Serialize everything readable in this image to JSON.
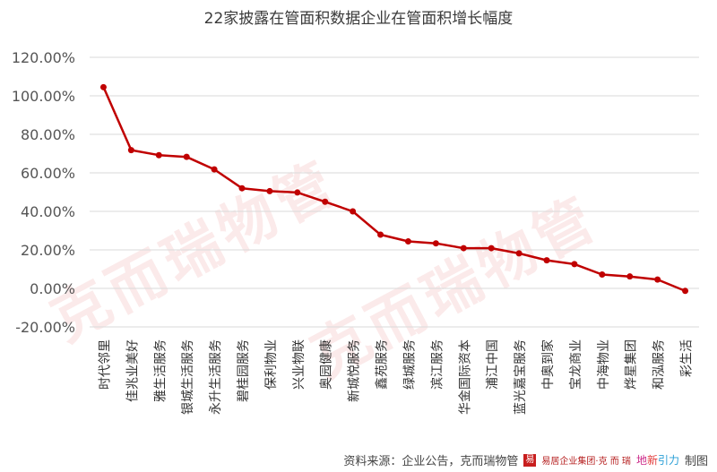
{
  "chart_data": {
    "type": "line",
    "title": "22家披露在管面积数据企业在管面积增长幅度",
    "categories": [
      "时代邻里",
      "佳兆业美好",
      "雅生活服务",
      "银城生活服务",
      "永升生活服务",
      "碧桂园服务",
      "保利物业",
      "兴业物联",
      "奥园健康",
      "新城悦服务",
      "鑫苑服务",
      "绿城服务",
      "滨江服务",
      "华金国际资本",
      "浦江中国",
      "蓝光嘉宝服务",
      "中奥到家",
      "宝龙商业",
      "中海物业",
      "烨星集团",
      "和泓服务",
      "彩生活"
    ],
    "series": [
      {
        "values": [
          104.5,
          71.8,
          69.2,
          68.3,
          61.8,
          52.0,
          50.5,
          49.8,
          45.0,
          40.0,
          27.9,
          24.4,
          23.4,
          20.9,
          20.9,
          18.2,
          14.6,
          12.6,
          7.2,
          6.2,
          4.6,
          -1.3
        ]
      }
    ],
    "ylim": [
      -20,
      120
    ],
    "yticks": [
      "120.00%",
      "100.00%",
      "80.00%",
      "60.00%",
      "40.00%",
      "20.00%",
      "0.00%",
      "-20.00%"
    ],
    "ytick_values": [
      120,
      100,
      80,
      60,
      40,
      20,
      0,
      -20
    ],
    "grid": true,
    "line_color": "#c00000"
  },
  "watermark": "克而瑞物管",
  "footer": {
    "source": "资料来源：企业公告，克而瑞物管",
    "logo_text": "易居企业集团·克 而 瑞",
    "brand_a": "地",
    "brand_b": "新",
    "brand_c": "引力",
    "suffix": "制图"
  }
}
